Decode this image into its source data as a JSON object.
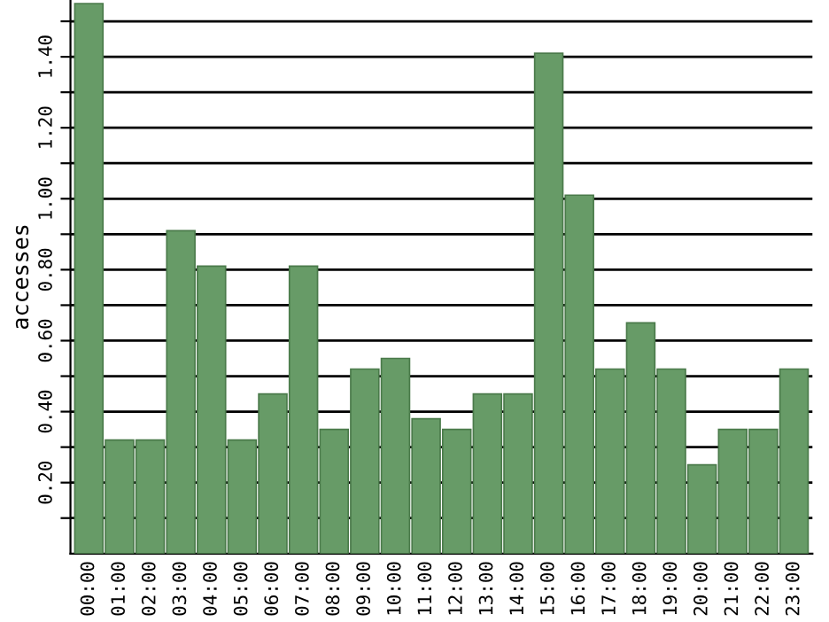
{
  "chart_data": {
    "type": "bar",
    "ylabel": "accesses",
    "categories": [
      "00:00",
      "01:00",
      "02:00",
      "03:00",
      "04:00",
      "05:00",
      "06:00",
      "07:00",
      "08:00",
      "09:00",
      "10:00",
      "11:00",
      "12:00",
      "13:00",
      "14:00",
      "15:00",
      "16:00",
      "17:00",
      "18:00",
      "19:00",
      "20:00",
      "21:00",
      "22:00",
      "23:00"
    ],
    "values": [
      1.55,
      0.32,
      0.32,
      0.91,
      0.81,
      0.32,
      0.45,
      0.81,
      0.35,
      0.52,
      0.55,
      0.38,
      0.35,
      0.45,
      0.45,
      1.41,
      1.01,
      0.52,
      0.65,
      0.52,
      0.25,
      0.35,
      0.35,
      0.52
    ],
    "color": "#679b67",
    "ylim": [
      0,
      1.56
    ],
    "yticks": [
      {
        "value": 0.1,
        "label": null
      },
      {
        "value": 0.2,
        "label": "0.20"
      },
      {
        "value": 0.3,
        "label": null
      },
      {
        "value": 0.4,
        "label": "0.40"
      },
      {
        "value": 0.5,
        "label": null
      },
      {
        "value": 0.6,
        "label": "0.60"
      },
      {
        "value": 0.7,
        "label": null
      },
      {
        "value": 0.8,
        "label": "0.80"
      },
      {
        "value": 0.9,
        "label": null
      },
      {
        "value": 1.0,
        "label": "1.00"
      },
      {
        "value": 1.1,
        "label": null
      },
      {
        "value": 1.2,
        "label": "1.20"
      },
      {
        "value": 1.3,
        "label": null
      },
      {
        "value": 1.4,
        "label": "1.40"
      },
      {
        "value": 1.5,
        "label": null
      }
    ],
    "grid": "y"
  }
}
